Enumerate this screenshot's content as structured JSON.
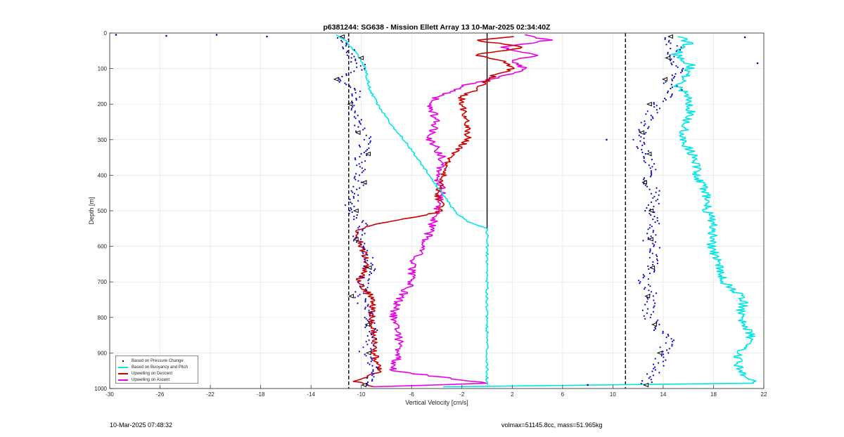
{
  "title": "p6381244: SG638 - Mission Ellett Array 13 10-Mar-2025 02:34:40Z",
  "footer": {
    "left": "10-Mar-2025 07:48:32",
    "right": "volmax=51145.8cc, mass=51.965kg"
  },
  "colors": {
    "pressure": "#0000cc",
    "buoyancy": "#00e5e5",
    "descent": "#cc0000",
    "ascent": "#e600e6",
    "zero_line": "#000000"
  },
  "legend": {
    "placement": "bottom-left",
    "items": [
      {
        "label": "Based on Pressure Change",
        "color": "#000000",
        "style": "dot"
      },
      {
        "label": "Based on Buoyancy and Pitch",
        "color": "#00e5e5",
        "style": "line"
      },
      {
        "label": "Upwelling on Descent",
        "color": "#cc0000",
        "style": "line"
      },
      {
        "label": "Upwelling on Ascent",
        "color": "#e600e6",
        "style": "line"
      }
    ]
  },
  "chart_data": {
    "type": "line",
    "title": "p6381244: SG638 - Mission Ellett Array 13 10-Mar-2025 02:34:40Z",
    "xlabel": "Vertical Velocity [cm/s]",
    "ylabel": "Depth [m]",
    "xlim": [
      -30,
      22
    ],
    "ylim": [
      0,
      1000
    ],
    "y_reversed": true,
    "grid": true,
    "x_ticks": [
      -30,
      -26,
      -22,
      -18,
      -14,
      -10,
      -6,
      -2,
      2,
      6,
      10,
      14,
      18,
      22
    ],
    "y_ticks": [
      0,
      100,
      200,
      300,
      400,
      500,
      600,
      700,
      800,
      900,
      1000
    ],
    "reference_lines": [
      {
        "x": -11,
        "style": "dashed",
        "color": "#000000"
      },
      {
        "x": 11,
        "style": "dashed",
        "color": "#000000"
      },
      {
        "x": 0,
        "style": "solid",
        "color": "#000000",
        "y_range": [
          0,
          550
        ]
      }
    ],
    "series": [
      {
        "name": "Based on Pressure Change",
        "kind": "markers",
        "descent": {
          "depth": [
            10,
            40,
            70,
            100,
            130,
            160,
            200,
            240,
            280,
            300,
            340,
            380,
            420,
            460,
            500,
            540,
            580,
            620,
            660,
            700,
            740,
            780,
            820,
            860,
            900,
            940,
            990
          ],
          "velocity": [
            -11.5,
            -11.2,
            -10.5,
            -10.0,
            -11.8,
            -10.2,
            -11.0,
            -10.5,
            -10.0,
            -9.5,
            -10.0,
            -10.2,
            -10.0,
            -10.5,
            -11.0,
            -10.0,
            -10.3,
            -9.5,
            -9.3,
            -9.8,
            -10.2,
            -9.6,
            -9.3,
            -9.0,
            -9.8,
            -9.0,
            -9.5
          ]
        },
        "ascent": {
          "depth": [
            10,
            40,
            70,
            100,
            130,
            160,
            200,
            240,
            280,
            300,
            340,
            380,
            420,
            460,
            500,
            540,
            580,
            620,
            660,
            700,
            740,
            780,
            820,
            860,
            900,
            940,
            990
          ],
          "velocity": [
            14.0,
            15.0,
            14.5,
            15.5,
            14.2,
            15.0,
            13.5,
            12.8,
            12.5,
            12.0,
            12.5,
            13.0,
            12.8,
            13.5,
            13.0,
            13.2,
            12.8,
            13.5,
            13.0,
            12.5,
            13.2,
            12.8,
            13.2,
            14.5,
            14.0,
            13.5,
            12.5
          ]
        },
        "outliers": [
          {
            "velocity": -29.5,
            "depth": 5
          },
          {
            "velocity": -25.5,
            "depth": 8
          },
          {
            "velocity": -21.5,
            "depth": 5
          },
          {
            "velocity": -17.5,
            "depth": 10
          },
          {
            "velocity": 20.5,
            "depth": 12
          },
          {
            "velocity": 21.5,
            "depth": 85
          },
          {
            "velocity": 9.5,
            "depth": 300
          },
          {
            "velocity": 8.0,
            "depth": 990
          }
        ]
      },
      {
        "name": "Based on Buoyancy and Pitch",
        "descent": {
          "depth": [
            5,
            20,
            40,
            60,
            80,
            100,
            130,
            160,
            200,
            250,
            300,
            350,
            400,
            450,
            500,
            530,
            550,
            990
          ],
          "velocity": [
            -12.0,
            -11.3,
            -10.8,
            -10.3,
            -10.0,
            -9.7,
            -9.5,
            -9.3,
            -8.7,
            -7.8,
            -6.6,
            -5.6,
            -4.6,
            -3.6,
            -2.6,
            -1.6,
            0,
            0
          ]
        },
        "ascent": {
          "depth": [
            10,
            30,
            60,
            90,
            120,
            150,
            180,
            200,
            230,
            260,
            300,
            350,
            400,
            450,
            500,
            540,
            600,
            650,
            700,
            750,
            800,
            850,
            900,
            950,
            985,
            995
          ],
          "velocity": [
            15.5,
            16.0,
            15.0,
            16.2,
            15.8,
            15.2,
            16.0,
            16.0,
            16.2,
            15.7,
            15.5,
            16.5,
            16.7,
            17.5,
            17.5,
            18.0,
            17.8,
            18.5,
            18.8,
            20.5,
            20.0,
            21.0,
            20.0,
            20.0,
            21.5,
            -3.5
          ]
        }
      },
      {
        "name": "Upwelling on Descent",
        "depth": [
          10,
          20,
          40,
          60,
          80,
          100,
          120,
          150,
          180,
          200,
          250,
          300,
          350,
          400,
          450,
          500,
          520,
          540,
          560,
          600,
          650,
          700,
          750,
          800,
          850,
          900,
          950,
          980,
          995
        ],
        "velocity": [
          2.0,
          -1.0,
          3.0,
          -1.0,
          1.5,
          2.0,
          0.5,
          -0.5,
          -2.0,
          -2.0,
          -1.5,
          -1.5,
          -3.0,
          -3.5,
          -4.0,
          -3.5,
          -6.0,
          -9.0,
          -10.5,
          -10.0,
          -9.5,
          -10.2,
          -9.0,
          -9.2,
          -9.0,
          -9.0,
          -8.5,
          -10.5,
          -9.0
        ]
      },
      {
        "name": "Upwelling on Ascent",
        "depth": [
          5,
          20,
          40,
          60,
          80,
          100,
          120,
          150,
          180,
          200,
          250,
          300,
          350,
          400,
          450,
          500,
          550,
          600,
          650,
          700,
          750,
          800,
          850,
          900,
          950,
          985,
          995
        ],
        "velocity": [
          3.0,
          5.0,
          1.0,
          4.0,
          2.0,
          3.0,
          1.5,
          -2.0,
          -4.0,
          -4.5,
          -4.0,
          -4.5,
          -3.5,
          -4.0,
          -3.5,
          -4.0,
          -4.5,
          -5.0,
          -6.0,
          -6.0,
          -7.0,
          -7.5,
          -7.0,
          -7.0,
          -7.5,
          0,
          -9.0
        ]
      }
    ]
  }
}
